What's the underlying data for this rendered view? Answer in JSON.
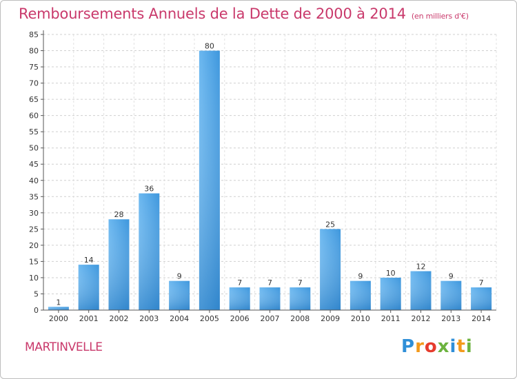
{
  "title": "Remboursements Annuels de la Dette de 2000 à 2014",
  "unit_note": "(en milliers d'€)",
  "commune": "MARTINVELLE",
  "logo": "Proxiti",
  "colors": {
    "title": "#c9396b",
    "bar_light": "#5aaceb",
    "bar_dark": "#2a7fc9",
    "grid": "#cfcfcf"
  },
  "chart_data": {
    "type": "bar",
    "categories": [
      "2000",
      "2001",
      "2002",
      "2003",
      "2004",
      "2005",
      "2006",
      "2007",
      "2008",
      "2009",
      "2010",
      "2011",
      "2012",
      "2013",
      "2014"
    ],
    "values": [
      1,
      14,
      28,
      36,
      9,
      80,
      7,
      7,
      7,
      25,
      9,
      10,
      12,
      9,
      7
    ],
    "ylim": [
      0,
      85
    ],
    "yticks": [
      0,
      5,
      10,
      15,
      20,
      25,
      30,
      35,
      40,
      45,
      50,
      55,
      60,
      65,
      70,
      75,
      80,
      85
    ],
    "grid": true,
    "xlabel": "",
    "ylabel": ""
  }
}
